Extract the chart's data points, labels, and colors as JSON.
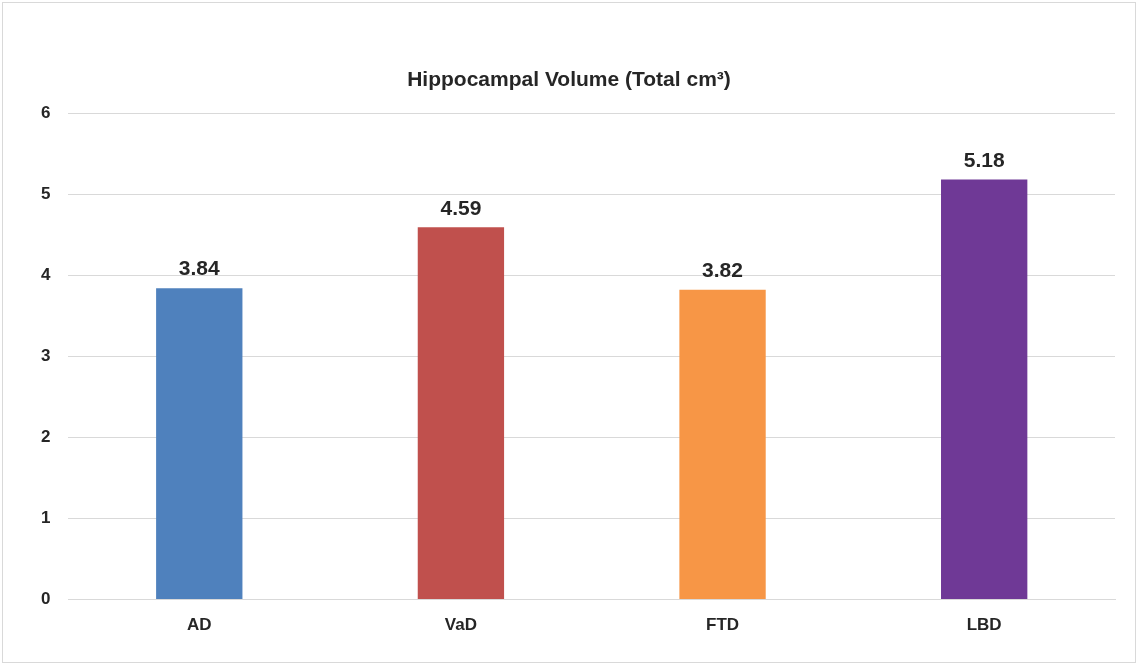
{
  "chart_data": {
    "type": "bar",
    "title": "Hippocampal Volume (Total cm³)",
    "categories": [
      "AD",
      "VaD",
      "FTD",
      "LBD"
    ],
    "values": [
      3.84,
      4.59,
      3.82,
      5.18
    ],
    "colors": [
      "#4f81bd",
      "#c0504d",
      "#f79646",
      "#6f3996"
    ],
    "ylim": [
      0,
      6
    ],
    "yticks": [
      0,
      1,
      2,
      3,
      4,
      5,
      6
    ],
    "grid": "y",
    "data_labels": true
  }
}
